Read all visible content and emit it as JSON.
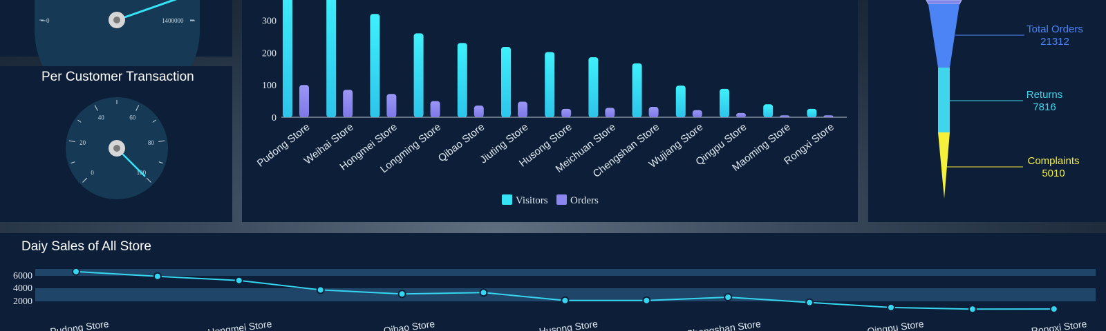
{
  "gauges": {
    "speed": {
      "min_label": "0",
      "max_label": "1400000",
      "value_fraction": 0.93
    },
    "per_customer": {
      "title": "Per Customer Transaction",
      "tick_labels": [
        "0",
        "20",
        "40",
        "60",
        "80",
        "100"
      ],
      "value": 100
    }
  },
  "bar_chart": {
    "legend": {
      "visitors": "Visitors",
      "orders": "Orders"
    },
    "colors": {
      "visitors": "#36e3f5",
      "orders": "#8b86f0"
    }
  },
  "funnel": {
    "items": [
      {
        "label": "Total Orders",
        "value": "21312",
        "color": "#4d84f5"
      },
      {
        "label": "Returns",
        "value": "7816",
        "color": "#3fd6ec"
      },
      {
        "label": "Complaints",
        "value": "5010",
        "color": "#f5f03c"
      }
    ]
  },
  "line_chart": {
    "title": "Daiy Sales of All Store",
    "color": "#36d6f0"
  },
  "chart_data": [
    {
      "type": "bar",
      "categories": [
        "Pudong Store",
        "Weihai Store",
        "Hongmei Store",
        "Longming Store",
        "Qibao Store",
        "Jiuting Store",
        "Husong Store",
        "Meichuan Store",
        "Chengshan Store",
        "Wujiang Store",
        "Qingpu Store",
        "Maoming Store",
        "Rongxi Store"
      ],
      "series": [
        {
          "name": "Visitors",
          "values": [
            420,
            400,
            320,
            260,
            230,
            218,
            202,
            186,
            167,
            98,
            88,
            40,
            26
          ]
        },
        {
          "name": "Orders",
          "values": [
            100,
            85,
            72,
            50,
            36,
            48,
            26,
            29,
            32,
            22,
            13,
            6,
            6
          ]
        }
      ],
      "yticks": [
        0,
        100,
        200,
        300
      ],
      "ylim": [
        0,
        400
      ],
      "legend": "bottom"
    },
    {
      "type": "line",
      "title": "Daiy Sales of All Store",
      "x": [
        "Pudong Store",
        "Weihai Store",
        "Hongmei Store",
        "Longming Store",
        "Qibao Store",
        "Jiuting Store",
        "Husong Store",
        "Meichuan Store",
        "Chengshan Store",
        "Wujiang Store",
        "Qingpu Store",
        "Maoming Store",
        "Rongxi Store"
      ],
      "x_tick_labels_shown": [
        "Pudong Store",
        "Hongmei Store",
        "Qibao Store",
        "Husong Store",
        "Chengshan Store",
        "Qingpu Store",
        "Rongxi Store"
      ],
      "values": [
        6300,
        5600,
        5000,
        3600,
        3000,
        3200,
        2000,
        2000,
        2500,
        1700,
        950,
        700,
        720
      ],
      "yticks": [
        2000,
        4000,
        6000
      ],
      "ylim": [
        0,
        7000
      ]
    }
  ]
}
